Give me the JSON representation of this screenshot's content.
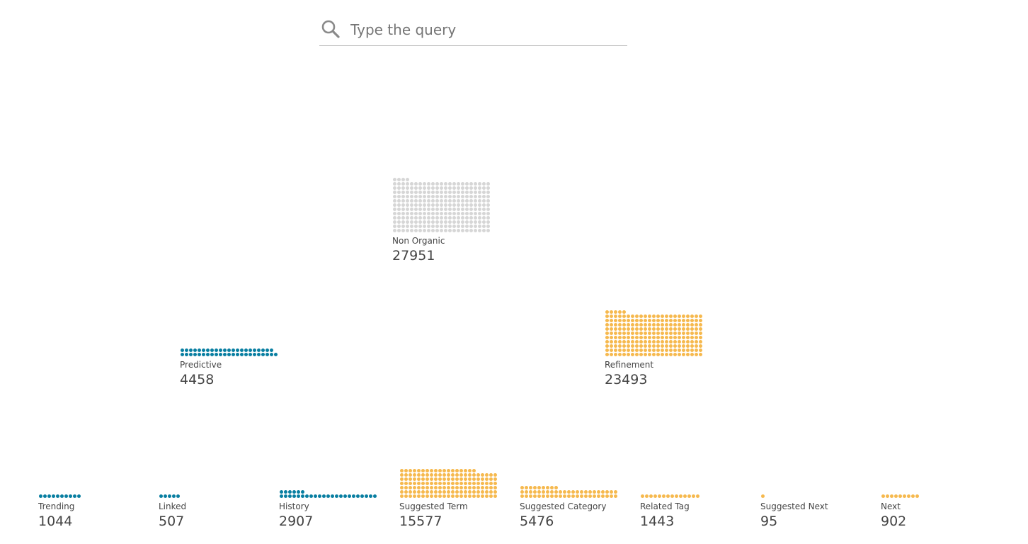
{
  "search": {
    "placeholder": "Type the query",
    "icon": "search-icon"
  },
  "colors": {
    "blue": "#087ea1",
    "orange": "#f6b94e",
    "gray": "#d6d6d6"
  },
  "dot_unit": 100,
  "nodes": [
    {
      "id": "non-organic",
      "label": "Non Organic",
      "count": "27951",
      "value": 27951,
      "color": "gray"
    },
    {
      "id": "predictive",
      "label": "Predictive",
      "count": "4458",
      "value": 4458,
      "color": "blue"
    },
    {
      "id": "refinement",
      "label": "Refinement",
      "count": "23493",
      "value": 23493,
      "color": "orange"
    },
    {
      "id": "trending",
      "label": "Trending",
      "count": "1044",
      "value": 1044,
      "color": "blue"
    },
    {
      "id": "linked",
      "label": "Linked",
      "count": "507",
      "value": 507,
      "color": "blue"
    },
    {
      "id": "history",
      "label": "History",
      "count": "2907",
      "value": 2907,
      "color": "blue"
    },
    {
      "id": "suggested-term",
      "label": "Suggested Term",
      "count": "15577",
      "value": 15577,
      "color": "orange"
    },
    {
      "id": "suggested-category",
      "label": "Suggested Category",
      "count": "5476",
      "value": 5476,
      "color": "orange"
    },
    {
      "id": "related-tag",
      "label": "Related Tag",
      "count": "1443",
      "value": 1443,
      "color": "orange"
    },
    {
      "id": "suggested-next",
      "label": "Suggested Next",
      "count": "95",
      "value": 95,
      "color": "orange"
    },
    {
      "id": "next",
      "label": "Next",
      "count": "902",
      "value": 902,
      "color": "orange"
    }
  ]
}
